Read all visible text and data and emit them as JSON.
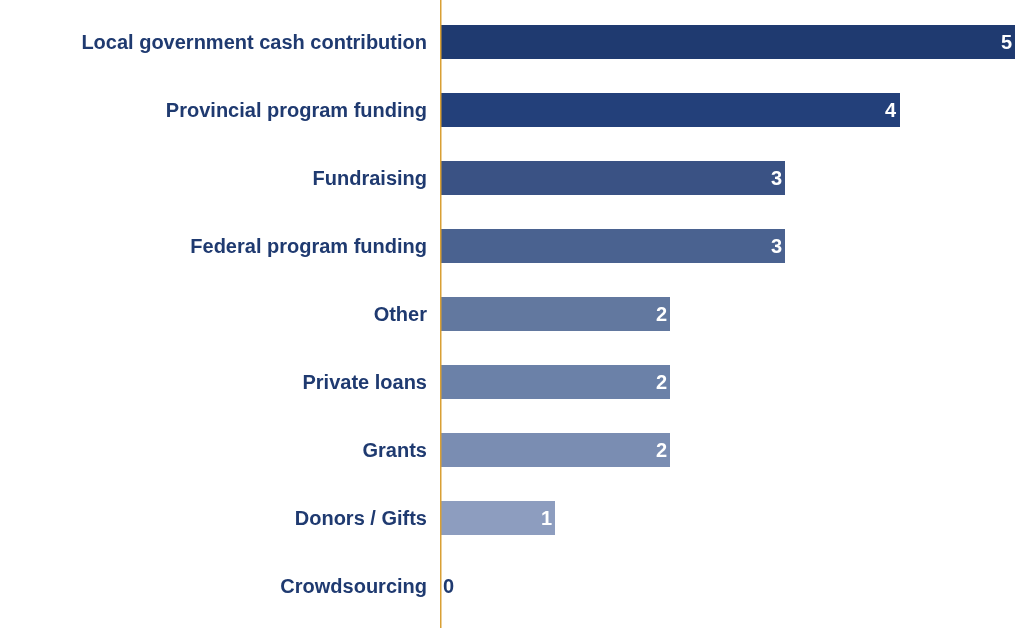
{
  "chart_data": {
    "type": "bar",
    "orientation": "horizontal",
    "categories": [
      "Local government cash contribution",
      "Provincial program funding",
      "Fundraising",
      "Federal program funding",
      "Other",
      "Private loans",
      "Grants",
      "Donors / Gifts",
      "Crowdsourcing"
    ],
    "values": [
      5,
      4,
      3,
      3,
      2,
      2,
      2,
      1,
      0
    ],
    "colors": [
      "#1f3a70",
      "#23407a",
      "#3a5284",
      "#4a6290",
      "#62789f",
      "#6b81a8",
      "#7a8db2",
      "#8d9dbf",
      "#9aa9c8"
    ],
    "xlim": [
      0,
      5
    ],
    "data_labels": true,
    "tick_labels": "y"
  }
}
